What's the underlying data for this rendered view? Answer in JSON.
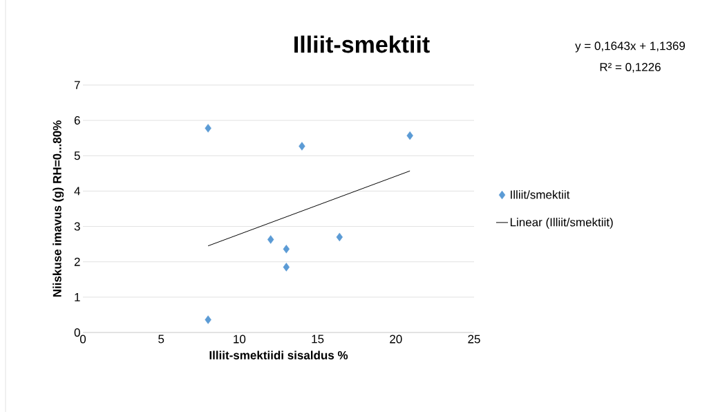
{
  "chart_data": {
    "type": "scatter",
    "title": "Illiit-smektiit",
    "xlabel": "Illiit-smektiidi sisaldus %",
    "ylabel": "Niiskuse imavus (g) RH=0...80%",
    "annotations": [
      "y = 0,1643x + 1,1369",
      "R² = 0,1226"
    ],
    "series": [
      {
        "name": "Illiit/smektiit",
        "color": "#5b9bd5",
        "marker": "diamond",
        "x": [
          8,
          8,
          12,
          13,
          13,
          14,
          16.4,
          20.9
        ],
        "values": [
          5.78,
          0.36,
          2.63,
          2.36,
          1.85,
          5.27,
          2.7,
          5.57
        ]
      },
      {
        "name": "Linear (Illiit/smektiit)",
        "type": "line",
        "color": "#000000",
        "marker": "none",
        "line_style": "solid",
        "x": [
          8,
          20.9
        ],
        "values": [
          2.45,
          4.57
        ]
      }
    ],
    "xlim": [
      0,
      25
    ],
    "xticks": [
      0,
      5,
      10,
      15,
      20,
      25
    ],
    "ylim": [
      0,
      7
    ],
    "yticks": [
      0,
      1,
      2,
      3,
      4,
      5,
      6,
      7
    ],
    "grid": "y",
    "legend": "right"
  }
}
